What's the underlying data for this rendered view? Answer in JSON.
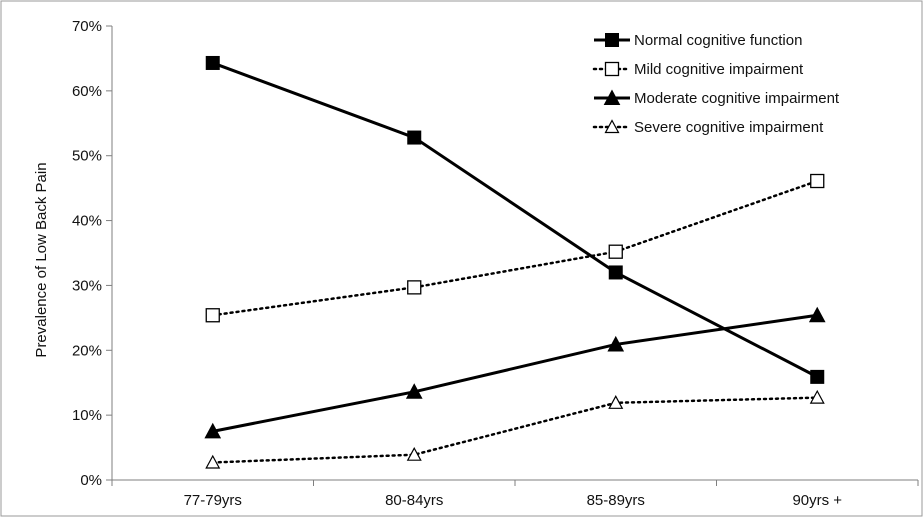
{
  "chart_data": {
    "type": "line",
    "title": "",
    "xlabel": "",
    "ylabel": "Prevalence of Low Back Pain",
    "ylim": [
      0,
      70
    ],
    "yticks": [
      0,
      10,
      20,
      30,
      40,
      50,
      60,
      70
    ],
    "ytick_labels": [
      "0%",
      "10%",
      "20%",
      "30%",
      "40%",
      "50%",
      "60%",
      "70%"
    ],
    "categories": [
      "77-79yrs",
      "80-84yrs",
      "85-89yrs",
      "90yrs +"
    ],
    "grid": false,
    "legend_position": "top-right",
    "series": [
      {
        "name": "Normal cognitive function",
        "values": [
          64.3,
          52.8,
          32.0,
          15.9
        ],
        "marker": "square-filled",
        "line": "solid",
        "color": "#000000"
      },
      {
        "name": "Mild cognitive impairment",
        "values": [
          25.4,
          29.7,
          35.2,
          46.1
        ],
        "marker": "square-open",
        "line": "dotted",
        "color": "#000000"
      },
      {
        "name": "Moderate cognitive impairment",
        "values": [
          7.5,
          13.6,
          20.9,
          25.4
        ],
        "marker": "triangle-filled",
        "line": "solid",
        "color": "#000000"
      },
      {
        "name": "Severe cognitive impairment",
        "values": [
          2.7,
          3.9,
          11.9,
          12.7
        ],
        "marker": "triangle-open",
        "line": "dotted",
        "color": "#000000"
      }
    ]
  }
}
